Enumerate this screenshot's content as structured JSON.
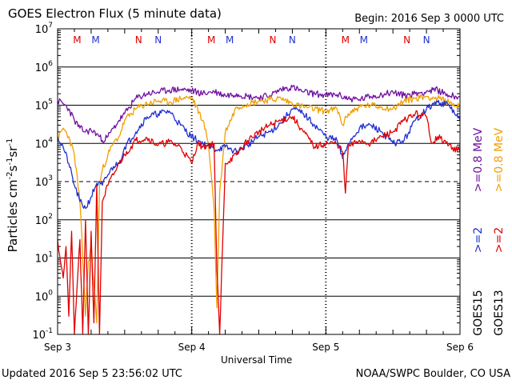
{
  "header": {
    "title": "GOES Electron Flux (5 minute data)",
    "begin": "Begin: 2016 Sep 3 0000 UTC"
  },
  "footer": {
    "updated": "Updated 2016 Sep  5 23:56:02 UTC",
    "credit": "NOAA/SWPC Boulder, CO USA"
  },
  "chart_data": {
    "type": "line",
    "title": "GOES Electron Flux (5 minute data)",
    "xlabel": "Universal Time",
    "ylabel": "Particles cm⁻²s⁻¹sr⁻¹",
    "y_scale": "log",
    "ylim": [
      0.1,
      10000000
    ],
    "xlim": [
      0,
      72
    ],
    "x_unit": "hours since 2016 Sep 3 0000 UTC",
    "x_ticks": [
      {
        "x": 0,
        "label": "Sep 3"
      },
      {
        "x": 24,
        "label": "Sep 4"
      },
      {
        "x": 48,
        "label": "Sep 5"
      },
      {
        "x": 72,
        "label": "Sep 6"
      }
    ],
    "y_ticks": [
      {
        "value": 0.1,
        "base": "10",
        "exp": "-1"
      },
      {
        "value": 1,
        "base": "10",
        "exp": "0"
      },
      {
        "value": 10,
        "base": "10",
        "exp": "1"
      },
      {
        "value": 100,
        "base": "10",
        "exp": "2"
      },
      {
        "value": 1000,
        "base": "10",
        "exp": "3"
      },
      {
        "value": 10000,
        "base": "10",
        "exp": "4"
      },
      {
        "value": 100000,
        "base": "10",
        "exp": "5"
      },
      {
        "value": 1000000,
        "base": "10",
        "exp": "6"
      },
      {
        "value": 10000000,
        "base": "10",
        "exp": "7"
      }
    ],
    "threshold_line": 1000,
    "grid": "horizontal solid at decades, dashed at 10^3",
    "day_separators": [
      24,
      48
    ],
    "markers": [
      {
        "x": 3.5,
        "label": "M",
        "color": "#e00000"
      },
      {
        "x": 6.8,
        "label": "M",
        "color": "#2030d0"
      },
      {
        "x": 14.5,
        "label": "N",
        "color": "#e00000"
      },
      {
        "x": 18.0,
        "label": "N",
        "color": "#2030d0"
      },
      {
        "x": 27.5,
        "label": "M",
        "color": "#e00000"
      },
      {
        "x": 30.8,
        "label": "M",
        "color": "#2030d0"
      },
      {
        "x": 38.5,
        "label": "N",
        "color": "#e00000"
      },
      {
        "x": 42.0,
        "label": "N",
        "color": "#2030d0"
      },
      {
        "x": 51.5,
        "label": "M",
        "color": "#e00000"
      },
      {
        "x": 54.8,
        "label": "M",
        "color": "#2030d0"
      },
      {
        "x": 62.5,
        "label": "N",
        "color": "#e00000"
      },
      {
        "x": 66.0,
        "label": "N",
        "color": "#2030d0"
      }
    ],
    "legend_placement": "right",
    "legend": [
      {
        "text": "GOES15",
        "color": "#000000"
      },
      {
        "text": ">=2",
        "color": "#2030d0"
      },
      {
        "text": ">=0.8  MeV",
        "color": "#7010a0"
      },
      {
        "text": "GOES13",
        "color": "#000000"
      },
      {
        "text": ">=2",
        "color": "#e00000"
      },
      {
        "text": ">=0.8  MeV",
        "color": "#f0a000"
      }
    ],
    "series": [
      {
        "name": "GOES15 >=0.8 MeV",
        "color": "#7010a0",
        "x": [
          0,
          1,
          2,
          3,
          4,
          5,
          6,
          7,
          8,
          9,
          10,
          11,
          12,
          14,
          16,
          18,
          20,
          22,
          24,
          26,
          28,
          30,
          32,
          34,
          36,
          38,
          40,
          42,
          44,
          46,
          48,
          50,
          52,
          54,
          56,
          58,
          60,
          62,
          64,
          66,
          68,
          70,
          72
        ],
        "y": [
          130000,
          110000,
          80000,
          40000,
          25000,
          20000,
          22000,
          18000,
          12000,
          15000,
          25000,
          40000,
          60000,
          150000,
          200000,
          220000,
          250000,
          260000,
          240000,
          200000,
          230000,
          180000,
          200000,
          170000,
          160000,
          180000,
          260000,
          300000,
          220000,
          200000,
          180000,
          190000,
          150000,
          140000,
          170000,
          190000,
          220000,
          180000,
          200000,
          230000,
          250000,
          180000,
          170000
        ]
      },
      {
        "name": "GOES13 >=0.8 MeV",
        "color": "#f0a000",
        "x": [
          0,
          1,
          2,
          3,
          4,
          5,
          5.5,
          6,
          7,
          7.5,
          8,
          9,
          10,
          11,
          12,
          14,
          16,
          18,
          20,
          22,
          24,
          26,
          27,
          28,
          28.5,
          29,
          30,
          32,
          34,
          36,
          38,
          40,
          42,
          44,
          46,
          48,
          50,
          51,
          52,
          54,
          56,
          58,
          60,
          62,
          64,
          66,
          68,
          70,
          72
        ],
        "y": [
          12000,
          25000,
          15000,
          5000,
          300,
          0.3,
          8,
          20,
          0.2,
          800,
          2000,
          5000,
          10000,
          15000,
          40000,
          80000,
          110000,
          130000,
          120000,
          150000,
          160000,
          40000,
          10000,
          200,
          0.5,
          500,
          20000,
          90000,
          110000,
          130000,
          140000,
          150000,
          110000,
          90000,
          80000,
          70000,
          80000,
          30000,
          60000,
          90000,
          100000,
          90000,
          80000,
          130000,
          150000,
          170000,
          150000,
          120000,
          90000
        ]
      },
      {
        "name": "GOES15 >=2 MeV",
        "color": "#2030d0",
        "x": [
          0,
          1,
          2,
          3,
          4,
          5,
          6,
          7,
          8,
          9,
          10,
          11,
          12,
          14,
          16,
          18,
          20,
          22,
          24,
          26,
          28,
          30,
          32,
          34,
          36,
          38,
          40,
          42,
          44,
          46,
          48,
          50,
          51,
          52,
          54,
          56,
          58,
          60,
          62,
          64,
          66,
          68,
          70,
          72
        ],
        "y": [
          15000,
          8000,
          3000,
          800,
          300,
          200,
          400,
          900,
          800,
          1500,
          2500,
          3000,
          8000,
          20000,
          50000,
          60000,
          70000,
          30000,
          15000,
          10000,
          7000,
          8000,
          6000,
          9000,
          15000,
          20000,
          35000,
          80000,
          60000,
          30000,
          15000,
          12000,
          4000,
          10000,
          25000,
          30000,
          20000,
          10000,
          12000,
          40000,
          80000,
          120000,
          100000,
          40000
        ]
      },
      {
        "name": "GOES13 >=2 MeV",
        "color": "#e00000",
        "x": [
          0,
          1,
          1.5,
          2,
          2.5,
          3,
          3.5,
          4,
          4.5,
          5,
          5.5,
          6,
          6.5,
          7,
          7.5,
          8,
          9,
          10,
          11,
          12,
          14,
          16,
          18,
          20,
          22,
          24,
          25,
          26,
          28,
          28.5,
          29,
          30,
          32,
          34,
          36,
          38,
          40,
          42,
          44,
          46,
          48,
          50,
          51,
          51.5,
          52,
          54,
          56,
          58,
          60,
          62,
          64,
          66,
          67,
          68,
          70,
          72
        ],
        "y": [
          30,
          3,
          20,
          0.3,
          50,
          0.1,
          2,
          30,
          0.1,
          100,
          0.1,
          50,
          0.2,
          800,
          0.1,
          300,
          800,
          1500,
          3000,
          5000,
          12000,
          14000,
          9000,
          11000,
          8000,
          3000,
          10000,
          8000,
          10000,
          5,
          0.1,
          3000,
          5000,
          12000,
          20000,
          30000,
          40000,
          50000,
          20000,
          8000,
          10000,
          10000,
          6000,
          500,
          8000,
          12000,
          10000,
          15000,
          20000,
          40000,
          60000,
          50000,
          10000,
          15000,
          9000,
          6000
        ]
      }
    ]
  }
}
